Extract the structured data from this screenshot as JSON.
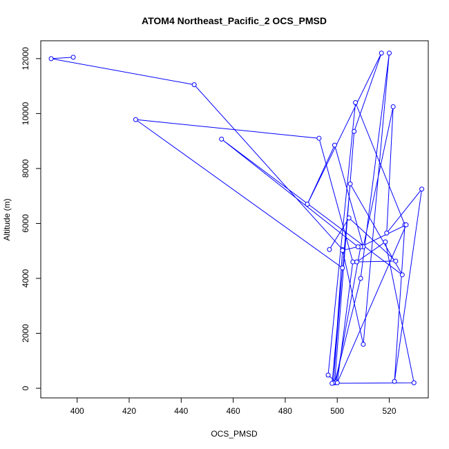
{
  "chart_data": {
    "type": "line",
    "markers": "open-circle",
    "title": "ATOM4 Northeast_Pacific_2 OCS_PMSD",
    "xlabel": "OCS_PMSD",
    "ylabel": "Altitude (m)",
    "xlim": [
      386,
      535
    ],
    "ylim": [
      -350,
      12650
    ],
    "xticks": [
      400,
      420,
      440,
      460,
      480,
      500,
      520
    ],
    "yticks": [
      0,
      2000,
      4000,
      6000,
      8000,
      10000,
      12000
    ],
    "grid": false,
    "series_color": "#0000ff",
    "series": [
      {
        "x": [
          398.5,
          390.0,
          445.0,
          502.0,
          510.0,
          520.0,
          509.0,
          499.0,
          506.5,
          517.0,
          488.5,
          499.0,
          510.0,
          521.5,
          519.0,
          532.5,
          522.0,
          526.0,
          507.0,
          496.5,
          499.5,
          509.0,
          526.5,
          500.0,
          506.0,
          493.0,
          422.5,
          502.0,
          498.5,
          502.0,
          508.0,
          455.5,
          525.0,
          505.0,
          498.0,
          529.5,
          518.5,
          507.5,
          522.5,
          504.5,
          497.0
        ],
        "y": [
          12050,
          12000,
          11050,
          5050,
          1600,
          12200,
          4000,
          200,
          9350,
          12200,
          6700,
          8850,
          5150,
          10250,
          5650,
          7250,
          250,
          5950,
          10400,
          480,
          230,
          5150,
          5950,
          200,
          4600,
          9100,
          9780,
          4380,
          200,
          5020,
          5150,
          9070,
          4130,
          7440,
          180,
          200,
          5330,
          4600,
          4630,
          6200,
          5050
        ]
      }
    ]
  }
}
